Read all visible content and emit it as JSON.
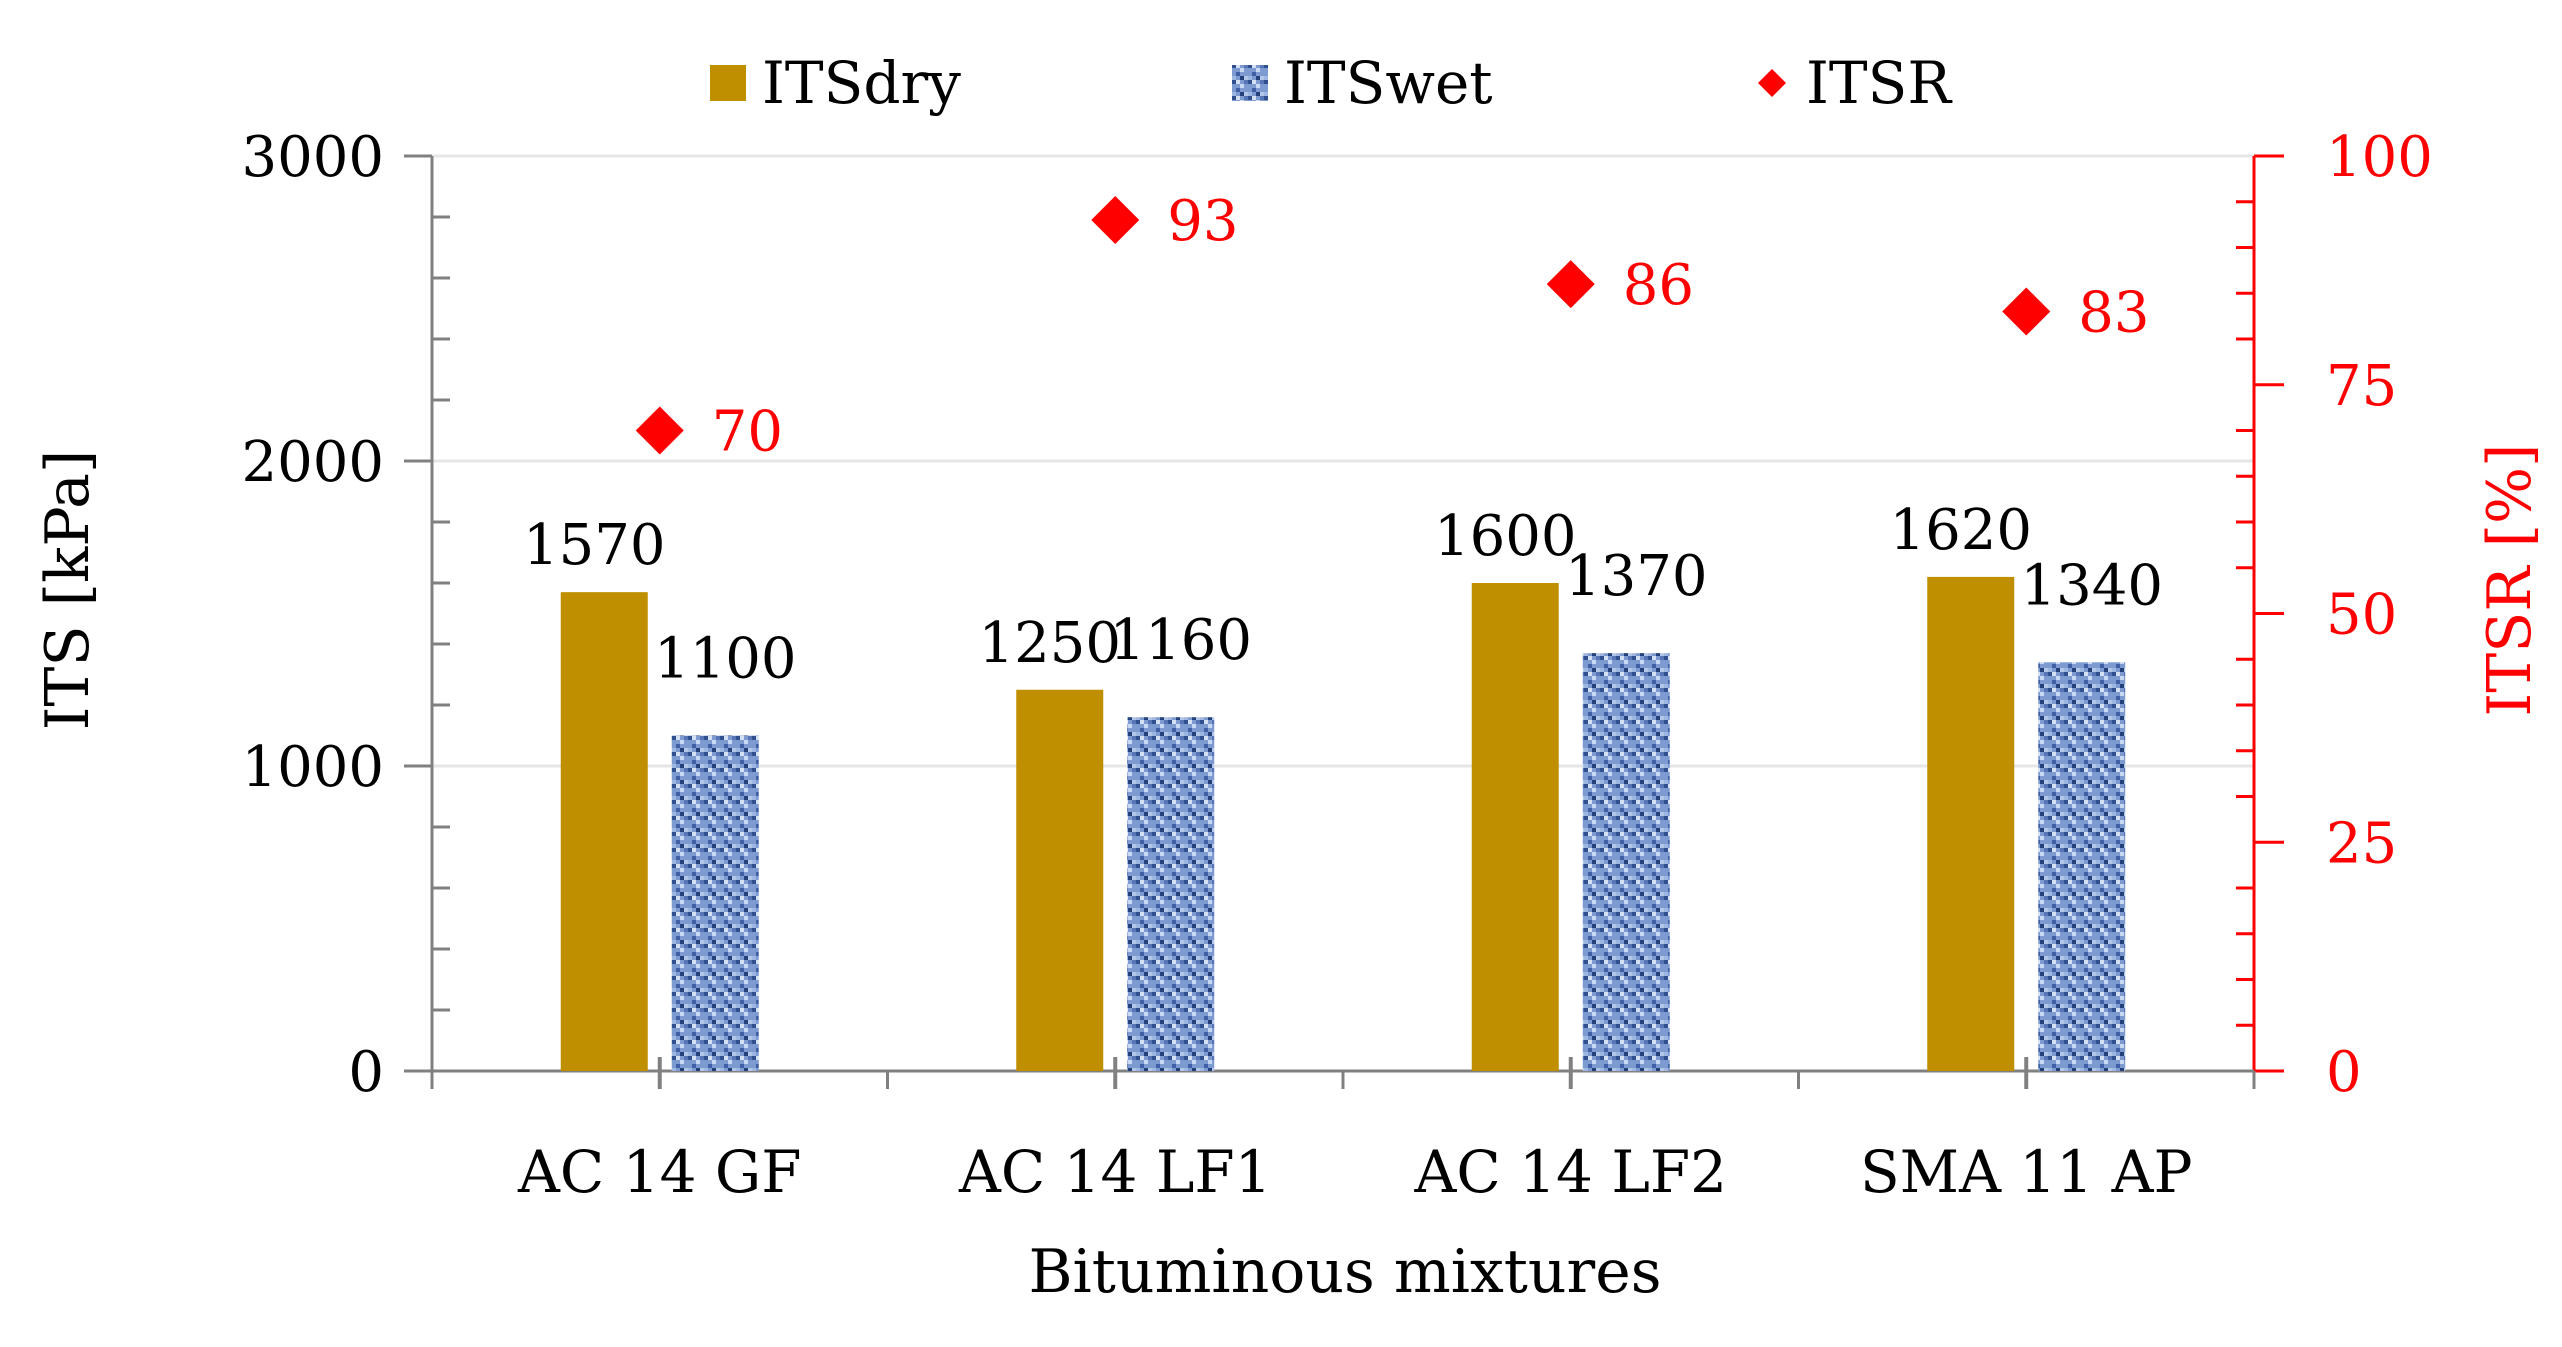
{
  "chart_data": {
    "type": "bar",
    "title": "",
    "categories": [
      "AC 14 GF",
      "AC 14 LF1",
      "AC 14 LF2",
      "SMA 11 AP"
    ],
    "series": [
      {
        "name": "ITSdry",
        "axis": "left",
        "kind": "bar",
        "color": "#bf8f00",
        "values": [
          1570,
          1250,
          1600,
          1620
        ]
      },
      {
        "name": "ITSwet",
        "axis": "left",
        "kind": "bar",
        "color": "#6f8fc8",
        "pattern": "textured-blue",
        "values": [
          1100,
          1160,
          1370,
          1340
        ]
      },
      {
        "name": "ITSR",
        "axis": "right",
        "kind": "marker",
        "marker": "diamond",
        "color": "#ff0000",
        "values": [
          70,
          93,
          86,
          83
        ]
      }
    ],
    "xlabel": "Bituminous mixtures",
    "ylabel": "ITS [kPa]",
    "y2label": "ITSR [%]",
    "ylim": [
      0,
      3000
    ],
    "yticks": [
      0,
      1000,
      2000,
      3000
    ],
    "y2lim": [
      0,
      100
    ],
    "y2ticks": [
      0,
      25,
      50,
      75,
      100
    ],
    "grid": true,
    "legend": "top-center"
  }
}
